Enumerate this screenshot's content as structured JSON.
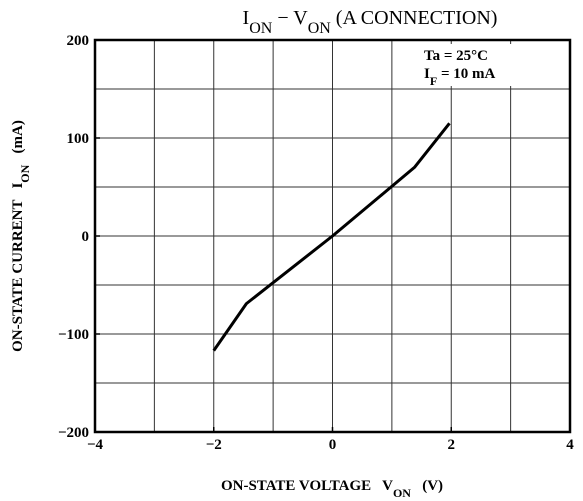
{
  "chart_data": {
    "type": "line",
    "title": [
      "I",
      "ON",
      " − V",
      "ON",
      " (A CONNECTION)"
    ],
    "annotations": [
      "Ta = 25°C",
      "I",
      "F",
      " = 10 mA"
    ],
    "xlabel": [
      "ON-STATE VOLTAGE   V",
      "ON",
      "   (V)"
    ],
    "ylabel": [
      "ON-STATE CURRENT   I",
      "ON",
      "   (mA)"
    ],
    "x": [
      -2,
      -1.45,
      0,
      1.38,
      1.97
    ],
    "values": [
      -117,
      -69,
      0,
      70,
      115
    ],
    "color": "#000000",
    "xlim": [
      -4,
      4
    ],
    "ylim": [
      -200,
      200
    ],
    "xticks": [
      {
        "value": -4,
        "label": "−4"
      },
      {
        "value": -2,
        "label": "−2"
      },
      0,
      2,
      4
    ],
    "yticks": [
      {
        "value": -200,
        "label": "−200"
      },
      {
        "value": -100,
        "label": "−100"
      },
      0,
      100,
      200
    ],
    "x_gridlines": [
      -3,
      -2,
      -1,
      0,
      1,
      2,
      3
    ],
    "y_gridlines": [
      -150,
      -100,
      -50,
      0,
      50,
      100,
      150
    ],
    "grid": true
  }
}
